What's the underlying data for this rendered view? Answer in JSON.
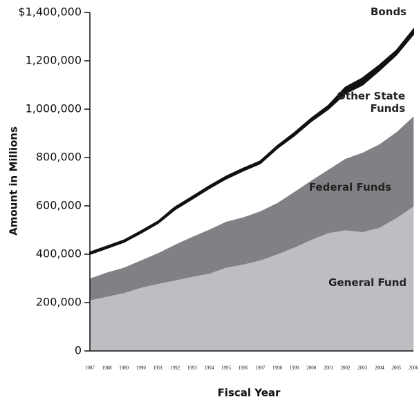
{
  "chart_data": {
    "type": "stacked_area",
    "x_label": "Fiscal Year",
    "y_label": "Amount in Millions",
    "categories": [
      "1987",
      "1988",
      "1989",
      "1990",
      "1991",
      "1992",
      "1993",
      "1994",
      "1995",
      "1996",
      "1997",
      "1998",
      "1999",
      "2000",
      "2001",
      "2002",
      "2003",
      "2004",
      "2005",
      "2006"
    ],
    "series": [
      {
        "name": "General Fund",
        "color": "#bdbec2",
        "values": [
          210000,
          225000,
          240000,
          262000,
          278000,
          292000,
          307000,
          320000,
          345000,
          358000,
          375000,
          400000,
          428000,
          460000,
          488000,
          500000,
          492000,
          510000,
          550000,
          598000
        ]
      },
      {
        "name": "Federal Funds",
        "color": "#808184",
        "values": [
          90000,
          100000,
          105000,
          113000,
          127000,
          148000,
          165000,
          182000,
          190000,
          195000,
          203000,
          212000,
          230000,
          245000,
          262000,
          295000,
          328000,
          345000,
          355000,
          372000
        ]
      },
      {
        "name": "Other State Funds",
        "color": "#ffffff",
        "values": [
          100000,
          100000,
          105000,
          113000,
          123000,
          145000,
          156000,
          170000,
          177000,
          192000,
          197000,
          226000,
          232000,
          245000,
          250000,
          270000,
          280000,
          305000,
          320000,
          340000
        ]
      },
      {
        "name": "Bonds",
        "color": "#111111",
        "values": [
          8000,
          8000,
          8000,
          8000,
          8000,
          10000,
          10000,
          10000,
          10000,
          10000,
          10000,
          10000,
          12000,
          12000,
          15000,
          25000,
          28000,
          22000,
          18000,
          20000
        ]
      }
    ],
    "ylim": [
      0,
      1400000
    ],
    "yticks": [
      0,
      {
        "value": 200000,
        "label": "200,000"
      },
      {
        "value": 400000,
        "label": "400,000"
      },
      {
        "value": 600000,
        "label": "600,000"
      },
      {
        "value": 800000,
        "label": "800,000"
      },
      {
        "value": 1000000,
        "label": "1,000,000"
      },
      {
        "value": 1200000,
        "label": "1,200,000"
      },
      {
        "value": 1400000,
        "label": "$1,400,000"
      }
    ]
  }
}
